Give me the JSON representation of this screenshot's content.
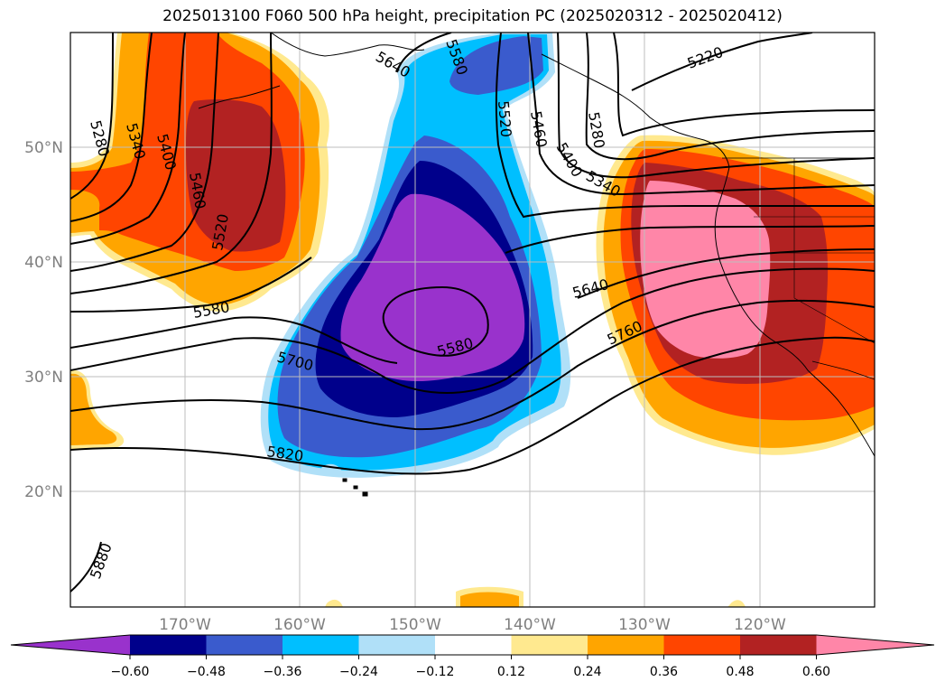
{
  "title": "2025013100 F060 500 hPa height, precipitation PC (2025020312 - 2025020412)",
  "colors": {
    "neg_lt_060": "#9932cc",
    "neg_048_060": "#00008b",
    "neg_036_048": "#3a5bcd",
    "neg_024_036": "#00bfff",
    "neg_012_024": "#b0e0f8",
    "neutral": "#ffffff",
    "pos_012_024": "#ffe98f",
    "pos_024_036": "#ffa500",
    "pos_036_048": "#ff4500",
    "pos_048_060": "#b22222",
    "pos_gt_060": "#ff86a8"
  },
  "map": {
    "lat_labels": [
      "50°N",
      "40°N",
      "30°N",
      "20°N"
    ],
    "lon_labels": [
      "170°W",
      "160°W",
      "150°W",
      "140°W",
      "130°W",
      "120°W"
    ],
    "contour_labels": [
      "5280",
      "5340",
      "5400",
      "5460",
      "5520",
      "5580",
      "5700",
      "5820",
      "5880",
      "5580",
      "5520",
      "5460",
      "5400",
      "5340",
      "5280",
      "5220",
      "5640",
      "5760",
      "5580",
      "5640"
    ]
  },
  "colorbar": {
    "ticks": [
      "−0.60",
      "−0.48",
      "−0.36",
      "−0.24",
      "−0.12",
      "0.12",
      "0.24",
      "0.36",
      "0.48",
      "0.60"
    ]
  }
}
